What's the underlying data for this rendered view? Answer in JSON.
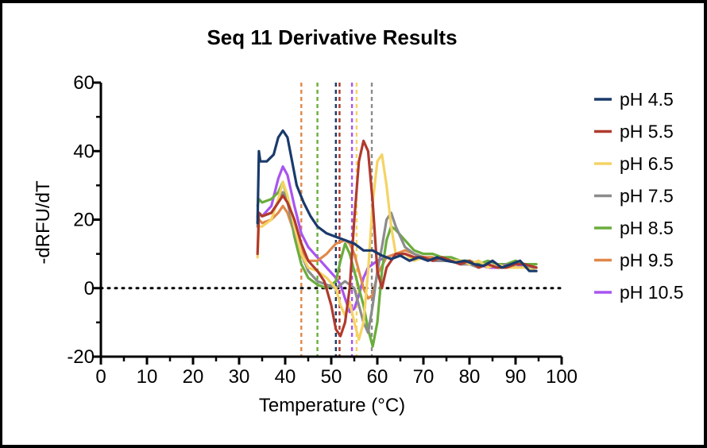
{
  "chart_data": {
    "type": "line",
    "title": "Seq 11 Derivative Results",
    "xlabel": "Temperature (°C)",
    "ylabel": "-dRFU/dT",
    "xlim": [
      0,
      100
    ],
    "ylim": [
      -20,
      60
    ],
    "x_ticks": [
      0,
      10,
      20,
      30,
      40,
      50,
      60,
      70,
      80,
      90,
      100
    ],
    "y_ticks": [
      -20,
      0,
      20,
      40,
      60
    ],
    "x_tick_labels": [
      "0",
      "10",
      "20",
      "30",
      "40",
      "50",
      "60",
      "70",
      "80",
      "90",
      "100"
    ],
    "y_tick_labels": [
      "-20",
      "0",
      "20",
      "40",
      "60"
    ],
    "zero_line": "dotted",
    "legend_position": "right",
    "series": [
      {
        "name": "pH 4.5",
        "color": "#1a3a6b",
        "vline": 51,
        "points": [
          [
            34,
            19
          ],
          [
            34.3,
            40
          ],
          [
            34.6,
            37
          ],
          [
            36,
            37
          ],
          [
            37.5,
            39
          ],
          [
            38.5,
            44
          ],
          [
            39.5,
            46
          ],
          [
            40.5,
            44
          ],
          [
            41.5,
            37
          ],
          [
            42.5,
            30
          ],
          [
            44,
            25
          ],
          [
            45.5,
            21
          ],
          [
            47,
            18
          ],
          [
            49,
            16
          ],
          [
            51,
            15
          ],
          [
            53,
            14
          ],
          [
            55,
            13
          ],
          [
            57,
            11
          ],
          [
            59,
            11
          ],
          [
            61,
            9.5
          ],
          [
            63,
            8.5
          ],
          [
            65,
            9.5
          ],
          [
            67,
            8
          ],
          [
            69,
            9
          ],
          [
            71,
            8
          ],
          [
            73,
            9
          ],
          [
            75,
            8
          ],
          [
            77,
            7.5
          ],
          [
            79,
            8
          ],
          [
            81,
            7
          ],
          [
            83,
            6.5
          ],
          [
            85,
            8
          ],
          [
            87,
            6
          ],
          [
            89,
            7
          ],
          [
            91,
            8
          ],
          [
            93,
            5
          ],
          [
            94.5,
            5
          ]
        ]
      },
      {
        "name": "pH 5.5",
        "color": "#b03a2e",
        "vline": 51.8,
        "points": [
          [
            34,
            10
          ],
          [
            34.3,
            22
          ],
          [
            35,
            21
          ],
          [
            37,
            22
          ],
          [
            38.5,
            25
          ],
          [
            39.5,
            27
          ],
          [
            40.5,
            25
          ],
          [
            42,
            20
          ],
          [
            43.5,
            13
          ],
          [
            45,
            8
          ],
          [
            47,
            5
          ],
          [
            48.5,
            2
          ],
          [
            50,
            -5
          ],
          [
            51,
            -12
          ],
          [
            52,
            -14
          ],
          [
            53,
            -10
          ],
          [
            54,
            0
          ],
          [
            55,
            20
          ],
          [
            56,
            37
          ],
          [
            57,
            43
          ],
          [
            58,
            40
          ],
          [
            59,
            25
          ],
          [
            60,
            5
          ],
          [
            61,
            0
          ],
          [
            62,
            6
          ],
          [
            64,
            10
          ],
          [
            66,
            10
          ],
          [
            68,
            9
          ],
          [
            70,
            9
          ],
          [
            72,
            8
          ],
          [
            74,
            9
          ],
          [
            76,
            8
          ],
          [
            78,
            7
          ],
          [
            80,
            8
          ],
          [
            82,
            6
          ],
          [
            84,
            7
          ],
          [
            86,
            6
          ],
          [
            88,
            6
          ],
          [
            90,
            7
          ],
          [
            92,
            7
          ],
          [
            94.5,
            6
          ]
        ]
      },
      {
        "name": "pH 6.5",
        "color": "#f5d364",
        "vline": 55.5,
        "points": [
          [
            34,
            9
          ],
          [
            34.3,
            18
          ],
          [
            35,
            18
          ],
          [
            37,
            20
          ],
          [
            38.5,
            26
          ],
          [
            39.5,
            31
          ],
          [
            40.5,
            27
          ],
          [
            42,
            18
          ],
          [
            43.5,
            10
          ],
          [
            45,
            6
          ],
          [
            47,
            5
          ],
          [
            49,
            3
          ],
          [
            51,
            0
          ],
          [
            52,
            -5
          ],
          [
            53,
            -8
          ],
          [
            54,
            -4
          ],
          [
            55,
            -10
          ],
          [
            56,
            -15
          ],
          [
            57,
            -10
          ],
          [
            58,
            5
          ],
          [
            59,
            25
          ],
          [
            60,
            37
          ],
          [
            61,
            39
          ],
          [
            62,
            30
          ],
          [
            63,
            18
          ],
          [
            64,
            10
          ],
          [
            66,
            10
          ],
          [
            68,
            8
          ],
          [
            70,
            9
          ],
          [
            72,
            8
          ],
          [
            74,
            9
          ],
          [
            76,
            8
          ],
          [
            78,
            8
          ],
          [
            80,
            7
          ],
          [
            82,
            8
          ],
          [
            84,
            6
          ],
          [
            86,
            7
          ],
          [
            88,
            6
          ],
          [
            90,
            6
          ],
          [
            92,
            6
          ],
          [
            94.5,
            5
          ]
        ]
      },
      {
        "name": "pH 7.5",
        "color": "#8c8c8c",
        "vline": 58.8,
        "points": [
          [
            34,
            18
          ],
          [
            34.3,
            22
          ],
          [
            35,
            21
          ],
          [
            37,
            22
          ],
          [
            38.5,
            25
          ],
          [
            39.5,
            28
          ],
          [
            40.5,
            25
          ],
          [
            42,
            17
          ],
          [
            43.5,
            10
          ],
          [
            45,
            5
          ],
          [
            47,
            2
          ],
          [
            49,
            1
          ],
          [
            51,
            0
          ],
          [
            53,
            2
          ],
          [
            55,
            0
          ],
          [
            56,
            -5
          ],
          [
            57,
            -10
          ],
          [
            58,
            -13
          ],
          [
            59,
            -5
          ],
          [
            60,
            5
          ],
          [
            61,
            12
          ],
          [
            62,
            20
          ],
          [
            63,
            22
          ],
          [
            64,
            18
          ],
          [
            66,
            12
          ],
          [
            68,
            10
          ],
          [
            70,
            9
          ],
          [
            72,
            8
          ],
          [
            74,
            8
          ],
          [
            76,
            8
          ],
          [
            78,
            7
          ],
          [
            80,
            7
          ],
          [
            82,
            6
          ],
          [
            84,
            7
          ],
          [
            86,
            6
          ],
          [
            88,
            7
          ],
          [
            90,
            6
          ],
          [
            92,
            6
          ],
          [
            94.5,
            6
          ]
        ]
      },
      {
        "name": "pH 8.5",
        "color": "#6aad3d",
        "vline": 47,
        "points": [
          [
            34,
            24
          ],
          [
            34.3,
            26
          ],
          [
            35,
            25
          ],
          [
            37,
            26
          ],
          [
            38.5,
            28
          ],
          [
            39.5,
            31
          ],
          [
            40.5,
            26
          ],
          [
            42,
            15
          ],
          [
            43.5,
            7
          ],
          [
            45,
            3
          ],
          [
            47,
            1
          ],
          [
            49,
            0
          ],
          [
            51,
            2
          ],
          [
            52,
            8
          ],
          [
            53,
            13
          ],
          [
            54,
            10
          ],
          [
            55,
            5
          ],
          [
            56,
            0
          ],
          [
            57,
            -5
          ],
          [
            58,
            -12
          ],
          [
            59,
            -17
          ],
          [
            60,
            -10
          ],
          [
            61,
            5
          ],
          [
            62,
            14
          ],
          [
            63,
            18
          ],
          [
            64,
            17
          ],
          [
            66,
            14
          ],
          [
            68,
            11
          ],
          [
            70,
            10
          ],
          [
            72,
            10
          ],
          [
            74,
            9
          ],
          [
            76,
            9
          ],
          [
            78,
            8
          ],
          [
            80,
            8
          ],
          [
            82,
            7
          ],
          [
            84,
            8
          ],
          [
            86,
            7
          ],
          [
            88,
            7
          ],
          [
            90,
            8
          ],
          [
            92,
            7
          ],
          [
            94.5,
            7
          ]
        ]
      },
      {
        "name": "pH 9.5",
        "color": "#e0884a",
        "vline": 43.5,
        "points": [
          [
            34,
            19
          ],
          [
            34.3,
            20
          ],
          [
            35,
            19
          ],
          [
            37,
            20
          ],
          [
            38.5,
            22
          ],
          [
            39.5,
            24
          ],
          [
            40.5,
            22
          ],
          [
            42,
            16
          ],
          [
            43.5,
            11
          ],
          [
            45,
            8
          ],
          [
            47,
            8
          ],
          [
            49,
            10
          ],
          [
            51,
            13
          ],
          [
            53,
            14
          ],
          [
            54,
            13
          ],
          [
            55,
            10
          ],
          [
            56,
            5
          ],
          [
            57,
            0
          ],
          [
            58,
            -3
          ],
          [
            59,
            -2
          ],
          [
            60,
            4
          ],
          [
            62,
            9
          ],
          [
            64,
            10
          ],
          [
            66,
            11
          ],
          [
            68,
            10
          ],
          [
            70,
            9
          ],
          [
            72,
            9
          ],
          [
            74,
            8
          ],
          [
            76,
            8
          ],
          [
            78,
            8
          ],
          [
            80,
            7
          ],
          [
            82,
            8
          ],
          [
            84,
            6
          ],
          [
            86,
            7
          ],
          [
            88,
            6
          ],
          [
            90,
            8
          ],
          [
            92,
            7
          ],
          [
            94.5,
            6
          ]
        ]
      },
      {
        "name": "pH 10.5",
        "color": "#a855f0",
        "vline": 54.5,
        "points": [
          [
            34,
            21
          ],
          [
            34.3,
            22
          ],
          [
            35,
            21
          ],
          [
            37,
            24
          ],
          [
            38.5,
            32
          ],
          [
            39.5,
            35.5
          ],
          [
            40.5,
            33
          ],
          [
            42,
            24
          ],
          [
            43.5,
            16
          ],
          [
            45,
            12
          ],
          [
            47,
            9
          ],
          [
            49,
            6
          ],
          [
            51,
            3
          ],
          [
            52,
            1
          ],
          [
            53,
            -3
          ],
          [
            54,
            -7
          ],
          [
            55,
            -6
          ],
          [
            56,
            -2
          ],
          [
            57,
            3
          ],
          [
            58,
            6
          ],
          [
            60,
            8
          ],
          [
            62,
            9
          ],
          [
            64,
            10
          ],
          [
            66,
            10
          ],
          [
            68,
            9
          ],
          [
            70,
            9
          ],
          [
            72,
            8
          ],
          [
            74,
            8
          ],
          [
            76,
            8
          ],
          [
            78,
            7
          ],
          [
            80,
            7
          ],
          [
            82,
            7
          ],
          [
            84,
            6
          ],
          [
            86,
            6
          ],
          [
            88,
            6
          ],
          [
            90,
            7
          ],
          [
            92,
            6
          ],
          [
            94.5,
            6
          ]
        ]
      }
    ]
  }
}
